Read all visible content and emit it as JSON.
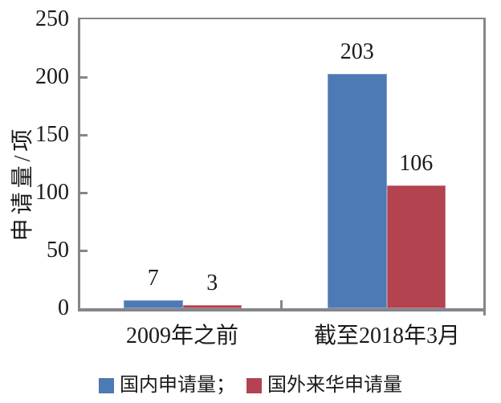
{
  "chart_data": {
    "type": "bar",
    "categories": [
      "2009年之前",
      "截至2018年3月"
    ],
    "series": [
      {
        "name": "国内申请量",
        "key": "domestic",
        "color": "#4D79B4",
        "values": [
          7,
          203
        ]
      },
      {
        "name": "国外来华申请量",
        "key": "foreign",
        "color": "#B2434F",
        "values": [
          3,
          106
        ]
      }
    ],
    "title": "",
    "xlabel": "",
    "ylabel": "申请量/项",
    "ylim": [
      0,
      250
    ],
    "yticks": [
      0,
      50,
      100,
      150,
      200,
      250
    ],
    "grid": false,
    "bar_value_labels": true,
    "legend": {
      "position": "bottom",
      "labels": [
        "国内申请量；",
        "国外来华申请量"
      ]
    }
  },
  "colors": {
    "axis": "#84868C",
    "text": "#1A1A1A",
    "background": "#FFFFFF"
  }
}
